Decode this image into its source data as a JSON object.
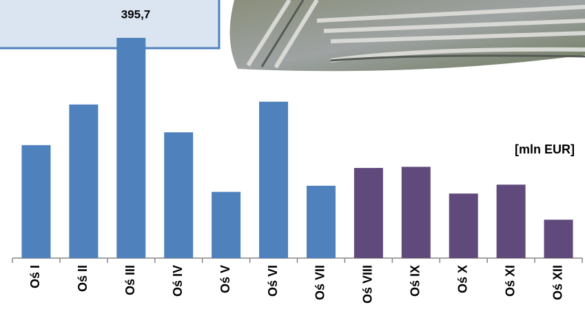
{
  "chart_data": {
    "type": "bar",
    "unit_label": "[mln EUR]",
    "categories": [
      "Oś I",
      "Oś II",
      "Oś III",
      "Oś IV",
      "Oś V",
      "Oś VI",
      "Oś VII",
      "Oś VIII",
      "Oś IX",
      "Oś X",
      "Oś XI",
      "Oś XII"
    ],
    "values": [
      203,
      276,
      395.7,
      226,
      119,
      281,
      130,
      162,
      164,
      116,
      132,
      69
    ],
    "value_labels": [
      null,
      null,
      "395,7",
      null,
      null,
      null,
      null,
      null,
      null,
      null,
      null,
      null
    ],
    "colors": [
      "#4f81bd",
      "#4f81bd",
      "#4f81bd",
      "#4f81bd",
      "#4f81bd",
      "#4f81bd",
      "#4f81bd",
      "#604a7b",
      "#604a7b",
      "#604a7b",
      "#604a7b",
      "#604a7b"
    ]
  }
}
